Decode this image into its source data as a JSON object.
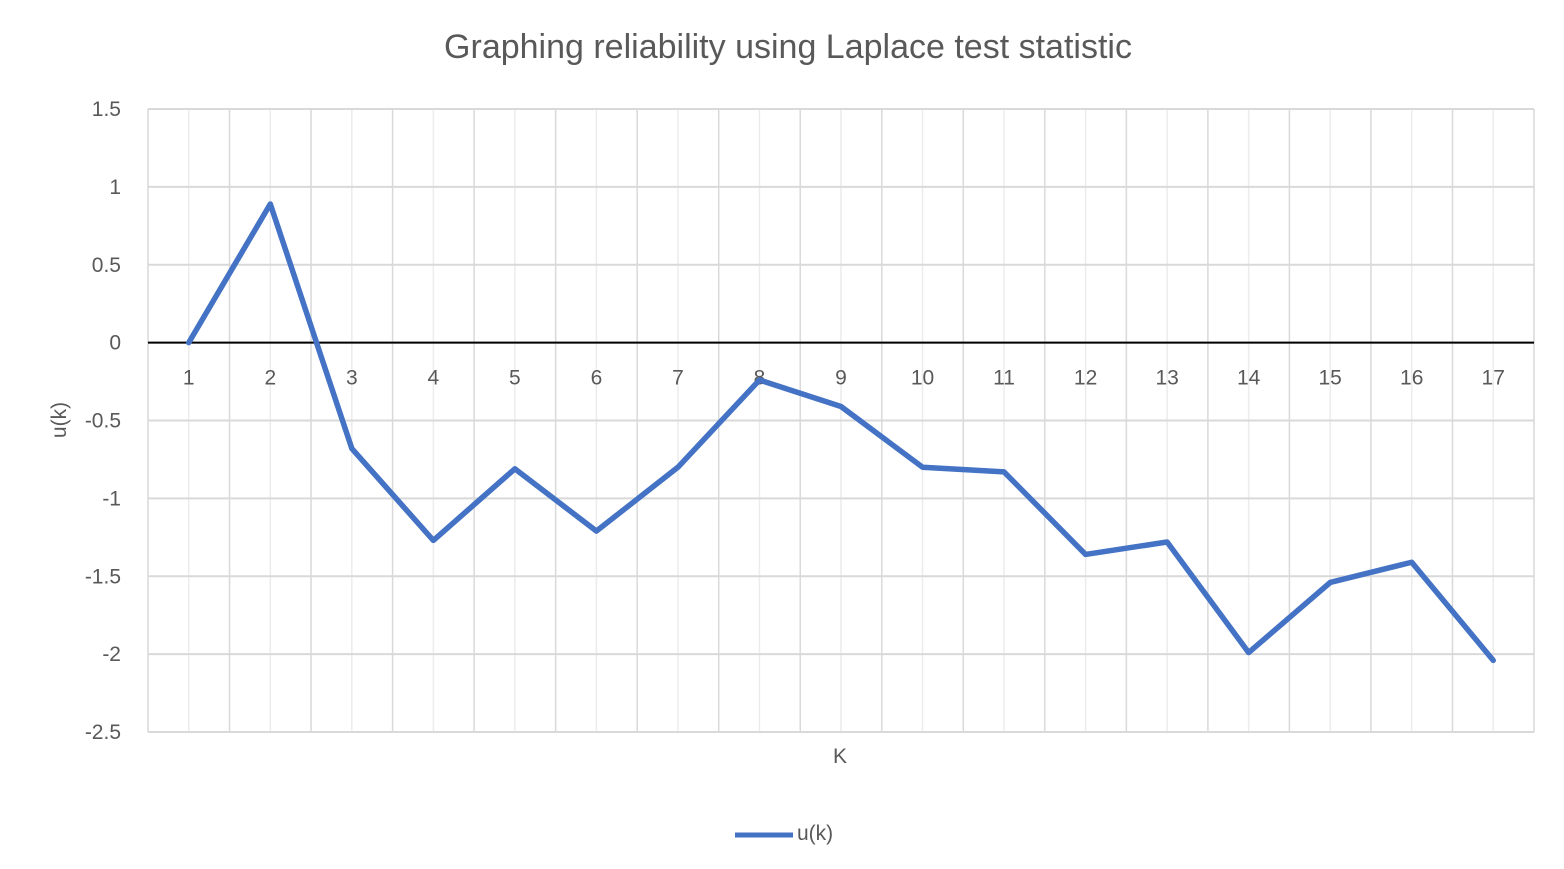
{
  "chart_data": {
    "type": "line",
    "title": "Graphing reliability using Laplace test statistic",
    "xlabel": "K",
    "ylabel": "u(k)",
    "categories": [
      "1",
      "2",
      "3",
      "4",
      "5",
      "6",
      "7",
      "8",
      "9",
      "10",
      "11",
      "12",
      "13",
      "14",
      "15",
      "16",
      "17"
    ],
    "series": [
      {
        "name": "u(k)",
        "color": "#4472C4",
        "values": [
          0,
          0.89,
          -0.68,
          -1.27,
          -0.81,
          -1.21,
          -0.8,
          -0.24,
          -0.41,
          -0.8,
          -0.83,
          -1.36,
          -1.28,
          -1.99,
          -1.54,
          -1.41,
          -2.04
        ]
      }
    ],
    "ylim": [
      -2.5,
      1.5
    ],
    "yticks": [
      "1.5",
      "1",
      "0.5",
      "0",
      "-0.5",
      "-1",
      "-1.5",
      "-2",
      "-2.5"
    ],
    "grid": true,
    "legend_position": "bottom",
    "colors": {
      "gridline": "#d9d9d9",
      "zero_line": "#000000",
      "text": "#595959"
    }
  }
}
